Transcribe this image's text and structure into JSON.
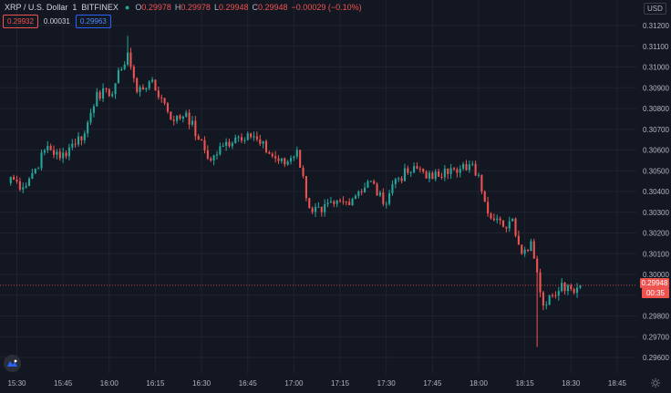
{
  "legend": {
    "symbol": "XRP / U.S. Dollar",
    "interval": "1",
    "exchange": "BITFINEX",
    "o_label": "O",
    "o_value": "0.29978",
    "h_label": "H",
    "h_value": "0.29978",
    "l_label": "L",
    "l_value": "0.29948",
    "c_label": "C",
    "c_value": "0.29948",
    "change": "−0.00029 (−0.10%)",
    "status_color": "#26a69a"
  },
  "bidask": {
    "bid": "0.29932",
    "spread": "0.00031",
    "ask": "0.29963"
  },
  "currency": "USD",
  "last_price": {
    "value": "0.29948",
    "countdown": "00:35"
  },
  "icons": {
    "logo": "tradingview-logo-icon",
    "settings": "gear-icon"
  },
  "colors": {
    "background": "#131722",
    "up": "#26a69a",
    "down": "#ef5350",
    "grid": "#1f2330"
  },
  "chart_data": {
    "type": "candlestick",
    "title": "XRP / U.S. Dollar",
    "interval": "1",
    "exchange": "BITFINEX",
    "grid": true,
    "y_axis_position": "right",
    "ylim": [
      0.2955,
      0.3125
    ],
    "y_ticks": [
      "0.31200",
      "0.31100",
      "0.31000",
      "0.30900",
      "0.30800",
      "0.30700",
      "0.30600",
      "0.30500",
      "0.30400",
      "0.30300",
      "0.30200",
      "0.30100",
      "0.30000",
      "0.29900",
      "0.29800",
      "0.29700",
      "0.29600"
    ],
    "x_ticks": [
      "15:30",
      "15:45",
      "16:00",
      "16:15",
      "16:30",
      "16:45",
      "17:00",
      "17:15",
      "17:30",
      "17:45",
      "18:00",
      "18:15",
      "18:30",
      "18:45"
    ],
    "start_time": "15:28",
    "last_price": 0.29948,
    "close_path": [
      {
        "t": "15:28",
        "v": 0.3047
      },
      {
        "t": "15:32",
        "v": 0.3042
      },
      {
        "t": "15:36",
        "v": 0.3051
      },
      {
        "t": "15:40",
        "v": 0.3062
      },
      {
        "t": "15:44",
        "v": 0.3056
      },
      {
        "t": "15:48",
        "v": 0.3063
      },
      {
        "t": "15:52",
        "v": 0.3068
      },
      {
        "t": "15:56",
        "v": 0.3088
      },
      {
        "t": "16:00",
        "v": 0.3086
      },
      {
        "t": "16:04",
        "v": 0.3099
      },
      {
        "t": "16:06",
        "v": 0.3107
      },
      {
        "t": "16:09",
        "v": 0.3088
      },
      {
        "t": "16:13",
        "v": 0.3093
      },
      {
        "t": "16:17",
        "v": 0.3085
      },
      {
        "t": "16:21",
        "v": 0.3074
      },
      {
        "t": "16:25",
        "v": 0.3078
      },
      {
        "t": "16:29",
        "v": 0.3065
      },
      {
        "t": "16:33",
        "v": 0.3055
      },
      {
        "t": "16:37",
        "v": 0.3062
      },
      {
        "t": "16:41",
        "v": 0.3066
      },
      {
        "t": "16:45",
        "v": 0.3068
      },
      {
        "t": "16:49",
        "v": 0.3063
      },
      {
        "t": "16:53",
        "v": 0.3057
      },
      {
        "t": "16:57",
        "v": 0.3053
      },
      {
        "t": "17:01",
        "v": 0.306
      },
      {
        "t": "17:05",
        "v": 0.3032
      },
      {
        "t": "17:09",
        "v": 0.303
      },
      {
        "t": "17:13",
        "v": 0.3034
      },
      {
        "t": "17:17",
        "v": 0.3035
      },
      {
        "t": "17:21",
        "v": 0.304
      },
      {
        "t": "17:25",
        "v": 0.3045
      },
      {
        "t": "17:29",
        "v": 0.3034
      },
      {
        "t": "17:33",
        "v": 0.3046
      },
      {
        "t": "17:37",
        "v": 0.3049
      },
      {
        "t": "17:41",
        "v": 0.3051
      },
      {
        "t": "17:45",
        "v": 0.3046
      },
      {
        "t": "17:49",
        "v": 0.3051
      },
      {
        "t": "17:53",
        "v": 0.3049
      },
      {
        "t": "17:57",
        "v": 0.3053
      },
      {
        "t": "18:00",
        "v": 0.3048
      },
      {
        "t": "18:04",
        "v": 0.3027
      },
      {
        "t": "18:08",
        "v": 0.3023
      },
      {
        "t": "18:11",
        "v": 0.3027
      },
      {
        "t": "18:14",
        "v": 0.301
      },
      {
        "t": "18:17",
        "v": 0.3016
      },
      {
        "t": "18:19",
        "v": 0.3001
      },
      {
        "t": "18:21",
        "v": 0.2985
      },
      {
        "t": "18:24",
        "v": 0.299
      },
      {
        "t": "18:27",
        "v": 0.2996
      },
      {
        "t": "18:30",
        "v": 0.2993
      },
      {
        "t": "18:33",
        "v": 0.29948
      }
    ],
    "extremes": [
      {
        "t": "16:06",
        "high": 0.3115
      },
      {
        "t": "18:19",
        "low": 0.2965
      }
    ]
  }
}
